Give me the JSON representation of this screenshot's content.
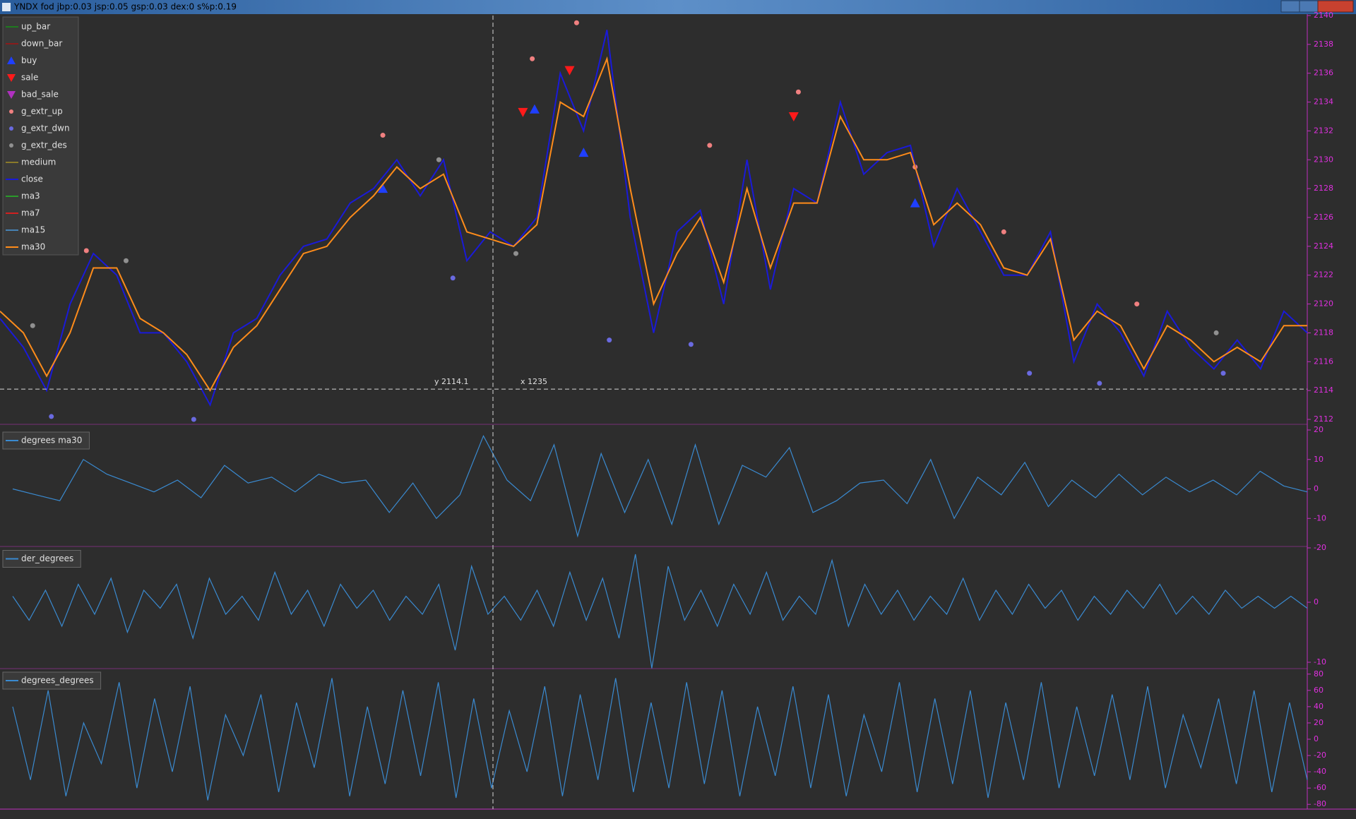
{
  "window": {
    "title": "YNDX fod jbp:0.03 jsp:0.05 gsp:0.03 dex:0 s%p:0.19"
  },
  "crosshair": {
    "y": 2114.1,
    "y_label": "y 2114.1",
    "x_label": "x 1235"
  },
  "chart_data": [
    {
      "type": "line",
      "ylim": [
        2112,
        2140
      ],
      "yticks": [
        2112,
        2114,
        2116,
        2118,
        2120,
        2122,
        2124,
        2126,
        2128,
        2130,
        2132,
        2134,
        2136,
        2138,
        2140
      ],
      "series": [
        {
          "name": "up_bar",
          "color": "#1f7a1f",
          "marker": "bar"
        },
        {
          "name": "down_bar",
          "color": "#8a1c1c",
          "marker": "bar"
        },
        {
          "name": "buy",
          "color": "#1f3fff",
          "marker": "triangle-up",
          "x": [
            16.4,
            22.9,
            25,
            39.2
          ],
          "values": [
            2128,
            2133.5,
            2130.5,
            2127
          ]
        },
        {
          "name": "sale",
          "color": "#ff1a1a",
          "marker": "triangle-down",
          "x": [
            22.4,
            24.4,
            34
          ],
          "values": [
            2133.3,
            2136.2,
            2133
          ]
        },
        {
          "name": "bad_sale",
          "color": "#b030c0",
          "marker": "triangle-down"
        },
        {
          "name": "g_extr_up",
          "color": "#f08080",
          "marker": "dot",
          "x": [
            3.7,
            16.4,
            22.8,
            24.7,
            30.4,
            34.2,
            39.2,
            43,
            48.7
          ],
          "values": [
            2123.7,
            2131.7,
            2137,
            2139.5,
            2131,
            2134.7,
            2129.5,
            2125,
            2120
          ]
        },
        {
          "name": "g_extr_dwn",
          "color": "#6a6ae0",
          "marker": "dot",
          "x": [
            2.2,
            8.3,
            19.4,
            26.1,
            29.6,
            44.1,
            47.1,
            52.4
          ],
          "values": [
            2112.2,
            2112,
            2121.8,
            2117.5,
            2117.2,
            2115.2,
            2114.5,
            2115.2
          ]
        },
        {
          "name": "g_extr_des",
          "color": "#909090",
          "marker": "dot",
          "x": [
            1.4,
            5.4,
            18.8,
            22.1,
            52.1
          ],
          "values": [
            2118.5,
            2123,
            2130,
            2123.5,
            2118
          ]
        },
        {
          "name": "medium",
          "color": "#8a7a2a",
          "marker": "line"
        },
        {
          "name": "close",
          "color": "#1a1ad8",
          "marker": "line",
          "values": [
            2119,
            2117,
            2114,
            2120,
            2123.5,
            2122,
            2118,
            2118,
            2116,
            2113,
            2118,
            2119,
            2122,
            2124,
            2124.5,
            2127,
            2128,
            2130,
            2127.5,
            2130,
            2123,
            2125,
            2124,
            2126,
            2136,
            2132,
            2139,
            2126,
            2118,
            2125,
            2126.5,
            2120,
            2130,
            2121,
            2128,
            2127,
            2134,
            2129,
            2130.5,
            2131,
            2124,
            2128,
            2125,
            2122,
            2122,
            2125,
            2116,
            2120,
            2118,
            2115,
            2119.5,
            2117,
            2115.5,
            2117.5,
            2115.5,
            2119.5,
            2118
          ]
        },
        {
          "name": "ma3",
          "color": "#2a9a2a",
          "marker": "line"
        },
        {
          "name": "ma7",
          "color": "#d02020",
          "marker": "line"
        },
        {
          "name": "ma15",
          "color": "#4682b4",
          "marker": "line"
        },
        {
          "name": "ma30",
          "color": "#ff8c1a",
          "marker": "line",
          "values": [
            2119.5,
            2118,
            2115,
            2118,
            2122.5,
            2122.5,
            2119,
            2118,
            2116.5,
            2114,
            2117,
            2118.5,
            2121,
            2123.5,
            2124,
            2126,
            2127.5,
            2129.5,
            2128,
            2129,
            2125,
            2124.5,
            2124,
            2125.5,
            2134,
            2133,
            2137,
            2128,
            2120,
            2123.5,
            2126,
            2121.5,
            2128,
            2122.5,
            2127,
            2127,
            2133,
            2130,
            2130,
            2130.5,
            2125.5,
            2127,
            2125.5,
            2122.5,
            2122,
            2124.5,
            2117.5,
            2119.5,
            2118.5,
            2115.5,
            2118.5,
            2117.5,
            2116,
            2117,
            2116,
            2118.5,
            2118.5
          ]
        }
      ]
    },
    {
      "type": "line",
      "ylim": [
        -20,
        20
      ],
      "yticks": [
        -20,
        -10,
        0,
        10,
        20
      ],
      "series": [
        {
          "name": "degrees ma30",
          "color": "#3a8ad0",
          "values": [
            0,
            -2,
            -4,
            10,
            5,
            2,
            -1,
            3,
            -3,
            8,
            2,
            4,
            -1,
            5,
            2,
            3,
            -8,
            2,
            -10,
            -2,
            18,
            3,
            -4,
            15,
            -16,
            12,
            -8,
            10,
            -12,
            15,
            -12,
            8,
            4,
            14,
            -8,
            -4,
            2,
            3,
            -5,
            10,
            -10,
            4,
            -2,
            9,
            -6,
            3,
            -3,
            5,
            -2,
            4,
            -1,
            3,
            -2,
            6,
            1,
            -1
          ]
        }
      ]
    },
    {
      "type": "line",
      "ylim": [
        -11,
        9
      ],
      "yticks": [
        -10,
        0
      ],
      "series": [
        {
          "name": "der_degrees",
          "color": "#3a8ad0",
          "values": [
            1,
            -3,
            2,
            -4,
            3,
            -2,
            4,
            -5,
            2,
            -1,
            3,
            -6,
            4,
            -2,
            1,
            -3,
            5,
            -2,
            2,
            -4,
            3,
            -1,
            2,
            -3,
            1,
            -2,
            3,
            -8,
            6,
            -2,
            1,
            -3,
            2,
            -4,
            5,
            -3,
            4,
            -6,
            8,
            -11,
            6,
            -3,
            2,
            -4,
            3,
            -2,
            5,
            -3,
            1,
            -2,
            7,
            -4,
            3,
            -2,
            2,
            -3,
            1,
            -2,
            4,
            -3,
            2,
            -2,
            3,
            -1,
            2,
            -3,
            1,
            -2,
            2,
            -1,
            3,
            -2,
            1,
            -2,
            2,
            -1,
            1,
            -1,
            1,
            -1
          ]
        }
      ]
    },
    {
      "type": "line",
      "ylim": [
        -85,
        85
      ],
      "yticks": [
        -80,
        -60,
        -40,
        -20,
        0,
        20,
        40,
        60,
        80
      ],
      "series": [
        {
          "name": "degrees_degrees",
          "color": "#3a8ad0",
          "values": [
            40,
            -50,
            60,
            -70,
            20,
            -30,
            70,
            -60,
            50,
            -40,
            65,
            -75,
            30,
            -20,
            55,
            -65,
            45,
            -35,
            75,
            -70,
            40,
            -55,
            60,
            -45,
            70,
            -72,
            50,
            -60,
            35,
            -40,
            65,
            -70,
            55,
            -50,
            75,
            -65,
            45,
            -60,
            70,
            -55,
            60,
            -70,
            40,
            -45,
            65,
            -60,
            55,
            -70,
            30,
            -40,
            70,
            -65,
            50,
            -55,
            60,
            -72,
            45,
            -50,
            70,
            -60,
            40,
            -45,
            55,
            -50,
            65,
            -60,
            30,
            -35,
            50,
            -55,
            60,
            -65,
            45,
            -50
          ]
        }
      ]
    }
  ]
}
